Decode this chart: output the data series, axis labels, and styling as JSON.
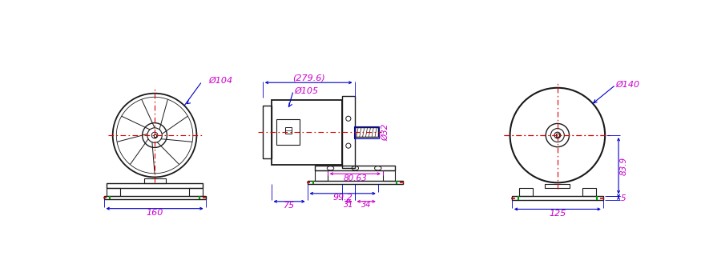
{
  "bg_color": "#ffffff",
  "lc": "#1a1a1a",
  "bc": "#0000cc",
  "mc": "#cc00cc",
  "rc": "#dd0000",
  "gc": "#009900",
  "dims": {
    "d104": "Ø104",
    "d105": "Ø105",
    "d140": "Ø140",
    "d32": "Ø32",
    "w160": "160",
    "w80_63": "80.63",
    "w75": "75",
    "w99_2": "99.2",
    "w31": "31",
    "w34": "34",
    "w125": "125",
    "w279_6": "(279.6)",
    "h83_9": "83.9",
    "h5": "5"
  }
}
